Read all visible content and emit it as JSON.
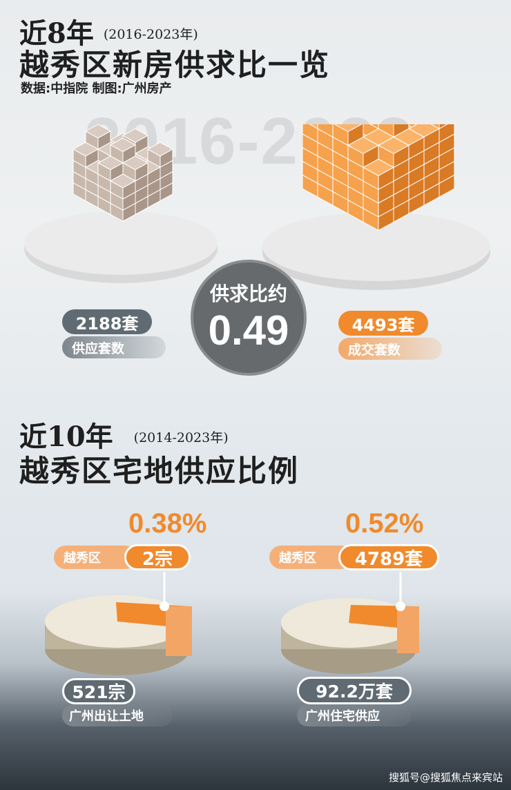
{
  "section1": {
    "title_prefix": "近8年",
    "title_range": "(2016-2023年)",
    "title": "越秀区新房供求比一览",
    "source": "数据:中指院   制图:广州房产",
    "watermark": "2016-2023",
    "ratio_label": "供求比约",
    "ratio_value": "0.49",
    "supply": {
      "value": "2188套",
      "label": "供应套数",
      "color": "#b9aaa0"
    },
    "sales": {
      "value": "4493套",
      "label": "成交套数",
      "color": "#f39a45"
    }
  },
  "section2": {
    "title_prefix": "近10年",
    "title_range": "(2014-2023年)",
    "title": "越秀区宅地供应比例",
    "left": {
      "percent": "0.38%",
      "district": "越秀区",
      "district_value": "2宗",
      "total": "521宗",
      "total_label": "广州出让土地",
      "share": 0.38
    },
    "right": {
      "percent": "0.52%",
      "district": "越秀区",
      "district_value": "4789套",
      "total": "92.2万套",
      "total_label": "广州住宅供应",
      "share": 0.52
    }
  },
  "colors": {
    "accent": "#f08a2c",
    "gray": "#5f6a72"
  },
  "footer": "搜狐号@搜狐焦点来宾站"
}
